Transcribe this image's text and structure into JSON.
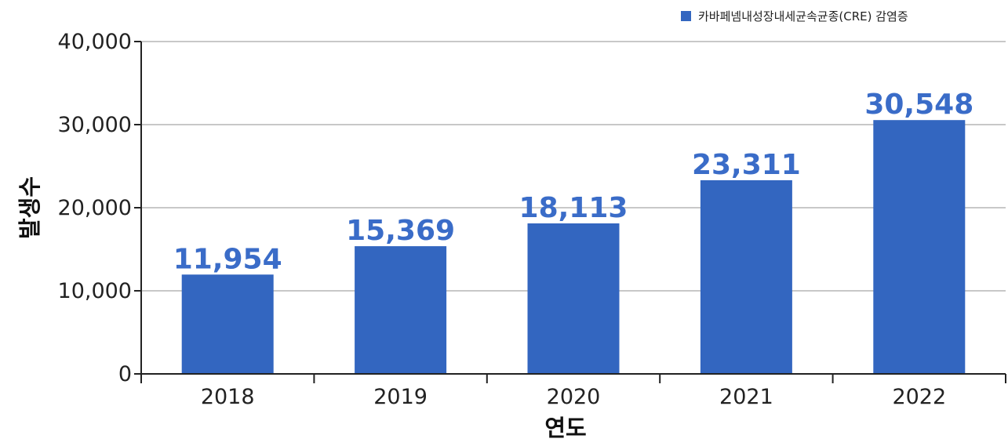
{
  "chart_data": {
    "type": "bar",
    "categories": [
      "2018",
      "2019",
      "2020",
      "2021",
      "2022"
    ],
    "series": [
      {
        "name": "카바페넴내성장내세균속균종(CRE) 감염증",
        "values": [
          11954,
          15369,
          18113,
          23311,
          30548
        ],
        "labels": [
          "11,954",
          "15,369",
          "18,113",
          "23,311",
          "30,548"
        ]
      }
    ],
    "xlabel": "연도",
    "ylabel": "발생수",
    "ylim": [
      0,
      40000
    ],
    "yticks": [
      0,
      10000,
      20000,
      30000,
      40000
    ],
    "ytick_labels": [
      "0",
      "10,000",
      "20,000",
      "30,000",
      "40,000"
    ],
    "grid": true,
    "legend_position": "top-right",
    "colors": {
      "bar": "#3366c0",
      "data_label": "#3a6cc8",
      "gridline": "#b5b5b5",
      "axis": "#222222"
    }
  }
}
